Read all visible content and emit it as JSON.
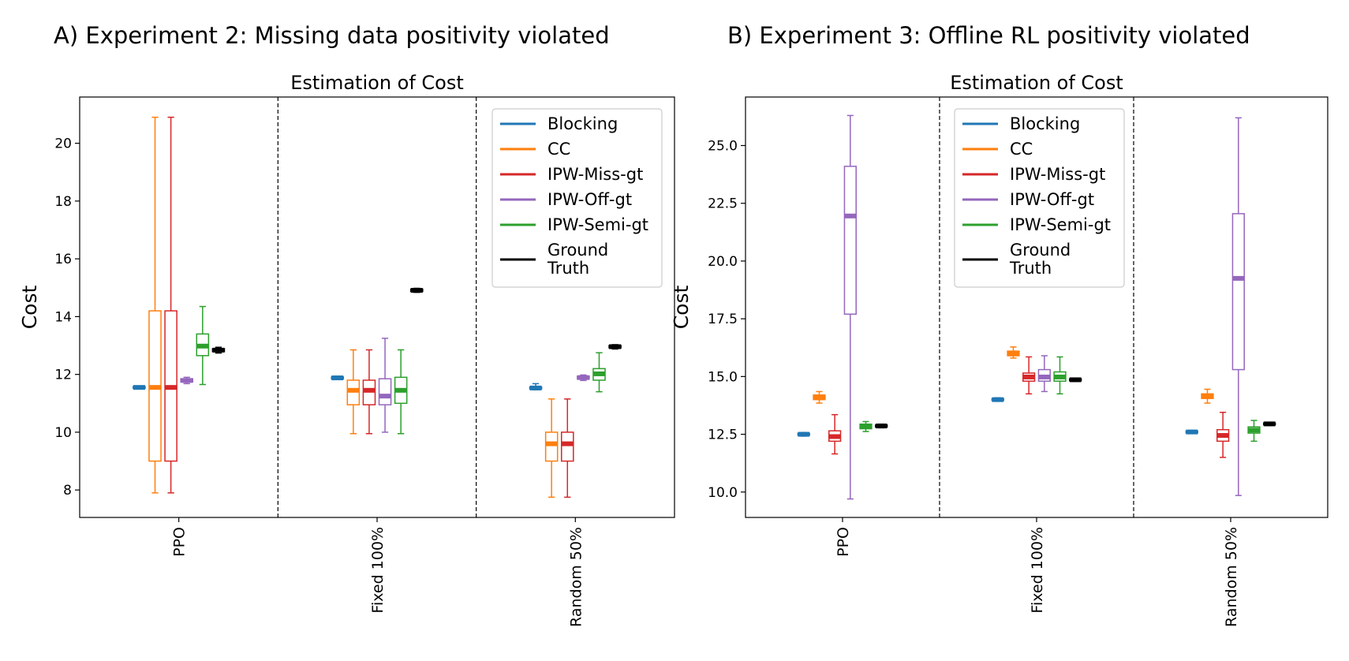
{
  "panels": [
    {
      "panel_title": "A) Experiment 2: Missing data positivity violated",
      "chart_data": {
        "type": "boxplot",
        "title": "Estimation of Cost",
        "xlabel": "",
        "ylabel": "Cost",
        "ylim": [
          7.05,
          21.6
        ],
        "yticks": [
          8,
          10,
          12,
          14,
          16,
          18,
          20
        ],
        "ytick_labels": [
          "8",
          "10",
          "12",
          "14",
          "16",
          "18",
          "20"
        ],
        "categories": [
          "PPO",
          "Fixed 100%",
          "Random 50%"
        ],
        "legend_position": "upper-right",
        "legend_label_lines": [
          [
            "Blocking"
          ],
          [
            "CC"
          ],
          [
            "IPW-Miss-gt"
          ],
          [
            "IPW-Off-gt"
          ],
          [
            "IPW-Semi-gt"
          ],
          [
            "Ground",
            "Truth"
          ]
        ],
        "series": [
          {
            "name": "Blocking",
            "color": "#1f77b4",
            "boxes": [
              {
                "whislo": 11.5,
                "q1": 11.52,
                "med": 11.55,
                "q3": 11.58,
                "whishi": 11.6
              },
              {
                "whislo": 11.82,
                "q1": 11.85,
                "med": 11.88,
                "q3": 11.91,
                "whishi": 11.94
              },
              {
                "whislo": 11.47,
                "q1": 11.5,
                "med": 11.53,
                "q3": 11.56,
                "whishi": 11.68
              }
            ]
          },
          {
            "name": "CC",
            "color": "#ff7f0e",
            "boxes": [
              {
                "whislo": 7.9,
                "q1": 9.0,
                "med": 11.55,
                "q3": 14.2,
                "whishi": 20.9
              },
              {
                "whislo": 9.95,
                "q1": 10.95,
                "med": 11.45,
                "q3": 11.8,
                "whishi": 12.85
              },
              {
                "whislo": 7.75,
                "q1": 9.0,
                "med": 9.6,
                "q3": 10.0,
                "whishi": 11.15
              }
            ]
          },
          {
            "name": "IPW-Miss-gt",
            "color": "#d62728",
            "boxes": [
              {
                "whislo": 7.9,
                "q1": 9.0,
                "med": 11.55,
                "q3": 14.2,
                "whishi": 20.9
              },
              {
                "whislo": 9.95,
                "q1": 10.95,
                "med": 11.45,
                "q3": 11.8,
                "whishi": 12.85
              },
              {
                "whislo": 7.75,
                "q1": 9.0,
                "med": 9.6,
                "q3": 10.0,
                "whishi": 11.15
              }
            ]
          },
          {
            "name": "IPW-Off-gt",
            "color": "#9467bd",
            "boxes": [
              {
                "whislo": 11.68,
                "q1": 11.74,
                "med": 11.79,
                "q3": 11.85,
                "whishi": 11.9
              },
              {
                "whislo": 10.0,
                "q1": 10.95,
                "med": 11.25,
                "q3": 11.85,
                "whishi": 13.25
              },
              {
                "whislo": 11.79,
                "q1": 11.84,
                "med": 11.89,
                "q3": 11.94,
                "whishi": 11.98
              }
            ]
          },
          {
            "name": "IPW-Semi-gt",
            "color": "#2ca02c",
            "boxes": [
              {
                "whislo": 11.65,
                "q1": 12.65,
                "med": 12.98,
                "q3": 13.4,
                "whishi": 14.35
              },
              {
                "whislo": 9.95,
                "q1": 11.0,
                "med": 11.45,
                "q3": 11.9,
                "whishi": 12.85
              },
              {
                "whislo": 11.4,
                "q1": 11.8,
                "med": 12.02,
                "q3": 12.2,
                "whishi": 12.75
              }
            ]
          },
          {
            "name": "Ground Truth",
            "color": "#000000",
            "boxes": [
              {
                "whislo": 12.74,
                "q1": 12.79,
                "med": 12.84,
                "q3": 12.89,
                "whishi": 12.94
              },
              {
                "whislo": 14.84,
                "q1": 14.87,
                "med": 14.91,
                "q3": 14.95,
                "whishi": 14.98
              },
              {
                "whislo": 12.88,
                "q1": 12.92,
                "med": 12.96,
                "q3": 13.0,
                "whishi": 13.03
              }
            ]
          }
        ]
      }
    },
    {
      "panel_title": "B) Experiment 3: Offline RL positivity violated",
      "chart_data": {
        "type": "boxplot",
        "title": "Estimation of Cost",
        "xlabel": "",
        "ylabel": "Cost",
        "ylim": [
          8.9,
          27.1
        ],
        "yticks": [
          10.0,
          12.5,
          15.0,
          17.5,
          20.0,
          22.5,
          25.0
        ],
        "ytick_labels": [
          "10.0",
          "12.5",
          "15.0",
          "17.5",
          "20.0",
          "22.5",
          "25.0"
        ],
        "categories": [
          "PPO",
          "Fixed 100%",
          "Random 50%"
        ],
        "legend_position": "upper-center",
        "legend_label_lines": [
          [
            "Blocking"
          ],
          [
            "CC"
          ],
          [
            "IPW-Miss-gt"
          ],
          [
            "IPW-Off-gt"
          ],
          [
            "IPW-Semi-gt"
          ],
          [
            "Ground",
            "Truth"
          ]
        ],
        "series": [
          {
            "name": "Blocking",
            "color": "#1f77b4",
            "boxes": [
              {
                "whislo": 12.42,
                "q1": 12.46,
                "med": 12.5,
                "q3": 12.54,
                "whishi": 12.58
              },
              {
                "whislo": 13.93,
                "q1": 13.97,
                "med": 14.0,
                "q3": 14.04,
                "whishi": 14.08
              },
              {
                "whislo": 12.53,
                "q1": 12.56,
                "med": 12.6,
                "q3": 12.64,
                "whishi": 12.67
              }
            ]
          },
          {
            "name": "CC",
            "color": "#ff7f0e",
            "boxes": [
              {
                "whislo": 13.85,
                "q1": 14.0,
                "med": 14.1,
                "q3": 14.2,
                "whishi": 14.35
              },
              {
                "whislo": 15.8,
                "q1": 15.9,
                "med": 16.0,
                "q3": 16.1,
                "whishi": 16.28
              },
              {
                "whislo": 13.85,
                "q1": 14.05,
                "med": 14.15,
                "q3": 14.25,
                "whishi": 14.45
              }
            ]
          },
          {
            "name": "IPW-Miss-gt",
            "color": "#d62728",
            "boxes": [
              {
                "whislo": 11.65,
                "q1": 12.2,
                "med": 12.4,
                "q3": 12.65,
                "whishi": 13.35
              },
              {
                "whislo": 14.25,
                "q1": 14.8,
                "med": 14.98,
                "q3": 15.15,
                "whishi": 15.85
              },
              {
                "whislo": 11.5,
                "q1": 12.2,
                "med": 12.45,
                "q3": 12.7,
                "whishi": 13.45
              }
            ]
          },
          {
            "name": "IPW-Off-gt",
            "color": "#9467bd",
            "boxes": [
              {
                "whislo": 9.7,
                "q1": 17.7,
                "med": 21.95,
                "q3": 24.1,
                "whishi": 26.3
              },
              {
                "whislo": 14.35,
                "q1": 14.8,
                "med": 14.98,
                "q3": 15.3,
                "whishi": 15.9
              },
              {
                "whislo": 9.85,
                "q1": 15.3,
                "med": 19.25,
                "q3": 22.05,
                "whishi": 26.2
              }
            ]
          },
          {
            "name": "IPW-Semi-gt",
            "color": "#2ca02c",
            "boxes": [
              {
                "whislo": 12.62,
                "q1": 12.74,
                "med": 12.84,
                "q3": 12.94,
                "whishi": 13.05
              },
              {
                "whislo": 14.25,
                "q1": 14.8,
                "med": 14.98,
                "q3": 15.2,
                "whishi": 15.85
              },
              {
                "whislo": 12.2,
                "q1": 12.55,
                "med": 12.68,
                "q3": 12.82,
                "whishi": 13.1
              }
            ]
          },
          {
            "name": "Ground Truth",
            "color": "#000000",
            "boxes": [
              {
                "whislo": 12.78,
                "q1": 12.82,
                "med": 12.86,
                "q3": 12.9,
                "whishi": 12.94
              },
              {
                "whislo": 14.79,
                "q1": 14.82,
                "med": 14.86,
                "q3": 14.9,
                "whishi": 14.93
              },
              {
                "whislo": 12.88,
                "q1": 12.91,
                "med": 12.95,
                "q3": 12.99,
                "whishi": 13.02
              }
            ]
          }
        ]
      }
    }
  ]
}
